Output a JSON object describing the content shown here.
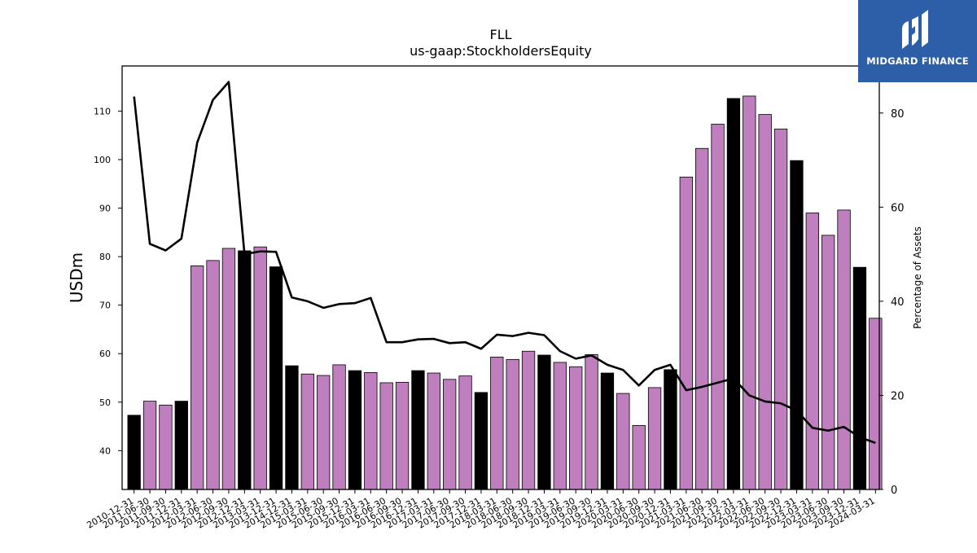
{
  "chart_data": {
    "type": "bar",
    "title": "FLL",
    "subtitle": "us-gaap:StockholdersEquity",
    "ylabel": "USDm",
    "y2label": "Percentage of Assets",
    "ylim": [
      32,
      119.3
    ],
    "y2lim": [
      0,
      90
    ],
    "yticks": [
      40,
      50,
      60,
      70,
      80,
      90,
      100,
      110
    ],
    "y2ticks": [
      0,
      20,
      40,
      60,
      80
    ],
    "categories": [
      "2010-12-31",
      "2011-06-30",
      "2011-09-30",
      "2011-12-31",
      "2012-03-31",
      "2012-06-30",
      "2012-09-30",
      "2012-12-31",
      "2013-03-31",
      "2013-12-31",
      "2014-12-31",
      "2015-03-31",
      "2015-06-30",
      "2015-09-30",
      "2015-12-31",
      "2016-03-31",
      "2016-06-30",
      "2016-09-30",
      "2016-12-31",
      "2017-03-31",
      "2017-06-30",
      "2017-09-30",
      "2017-12-31",
      "2018-03-31",
      "2018-06-30",
      "2018-09-30",
      "2018-12-31",
      "2019-03-31",
      "2019-06-30",
      "2019-09-30",
      "2019-12-31",
      "2020-03-31",
      "2020-06-30",
      "2020-09-30",
      "2020-12-31",
      "2021-03-31",
      "2021-06-30",
      "2021-09-30",
      "2021-12-31",
      "2022-03-31",
      "2022-06-30",
      "2022-09-30",
      "2022-12-31",
      "2023-03-31",
      "2023-06-30",
      "2023-09-30",
      "2023-12-31",
      "2024-03-31"
    ],
    "series": [
      {
        "kind": "bar",
        "values": [
          47.3,
          50.2,
          49.4,
          50.2,
          78.1,
          79.2,
          81.7,
          81.2,
          82.0,
          77.9,
          57.5,
          55.8,
          55.5,
          57.7,
          56.5,
          56.1,
          54.0,
          54.1,
          56.5,
          56.0,
          54.7,
          55.4,
          52.0,
          59.3,
          58.8,
          60.5,
          59.7,
          58.2,
          57.3,
          59.8,
          56.0,
          51.8,
          45.2,
          53.0,
          56.7,
          96.4,
          102.3,
          107.3,
          112.6,
          113.1,
          109.3,
          106.3,
          99.8,
          89.0,
          84.4,
          89.6,
          77.8,
          67.3
        ],
        "highlight": [
          true,
          false,
          false,
          true,
          false,
          false,
          false,
          true,
          false,
          true,
          true,
          false,
          false,
          false,
          true,
          false,
          false,
          false,
          true,
          false,
          false,
          false,
          true,
          false,
          false,
          false,
          true,
          false,
          false,
          false,
          true,
          false,
          false,
          false,
          true,
          false,
          false,
          false,
          true,
          false,
          false,
          false,
          true,
          false,
          false,
          false,
          true,
          false
        ],
        "color": "#bf7fbf",
        "highlight_color": "#000000"
      },
      {
        "kind": "line",
        "axis": "right",
        "values": [
          83.5,
          52.2,
          50.8,
          53.3,
          73.7,
          82.8,
          86.6,
          50.0,
          50.6,
          50.5,
          40.8,
          40.0,
          38.6,
          39.4,
          39.6,
          40.7,
          31.3,
          31.3,
          31.9,
          32.0,
          31.1,
          31.3,
          29.9,
          32.9,
          32.6,
          33.3,
          32.8,
          29.4,
          27.8,
          28.5,
          26.5,
          25.4,
          22.1,
          25.4,
          26.5,
          21.1,
          21.8,
          22.7,
          23.6,
          20.0,
          18.7,
          18.3,
          16.8,
          13.1,
          12.5,
          13.3,
          11.1,
          9.9
        ],
        "color": "#000000"
      }
    ],
    "grid": false,
    "legend": "none"
  },
  "logo": {
    "text": "MIDGARD FINANCE",
    "color": "#2d5ea8"
  }
}
